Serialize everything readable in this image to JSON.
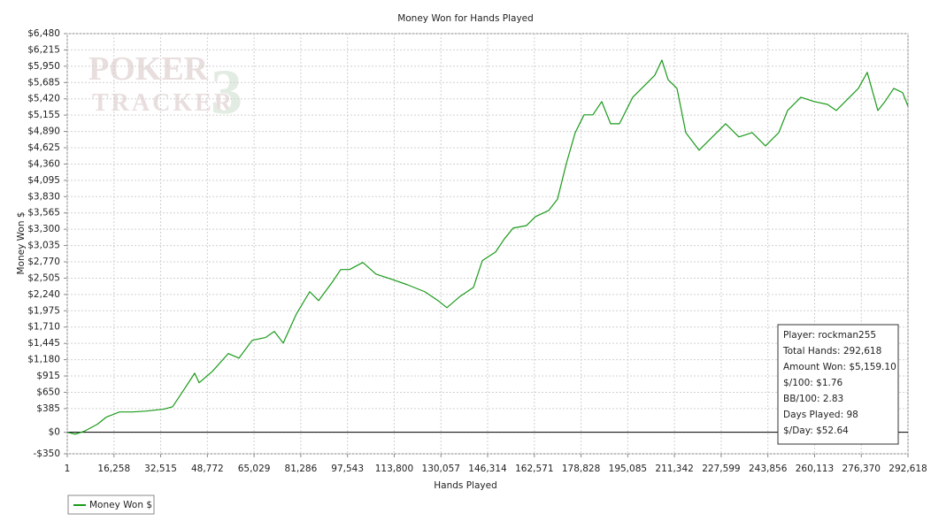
{
  "chart_data": {
    "type": "line",
    "title": "Money Won for Hands Played",
    "xlabel": "Hands Played",
    "ylabel": "Money Won $",
    "watermark": {
      "line1": "POKER",
      "line2": "TRACKER",
      "mark": "3"
    },
    "info_box": [
      "Player: rockman255",
      "Total Hands: 292,618",
      "Amount Won: $5,159.10",
      "$/100: $1.76",
      "BB/100: 2.83",
      "Days Played: 98",
      "$/Day: $52.64"
    ],
    "xlim": [
      1,
      292618
    ],
    "ylim": [
      -350,
      6480
    ],
    "grid": true,
    "legend": "bottom-left",
    "xticks": [
      1,
      {
        "value": 16258,
        "label": "16,258"
      },
      {
        "value": 32515,
        "label": "32,515"
      },
      {
        "value": 48772,
        "label": "48,772"
      },
      {
        "value": 65029,
        "label": "65,029"
      },
      {
        "value": 81286,
        "label": "81,286"
      },
      {
        "value": 97543,
        "label": "97,543"
      },
      {
        "value": 113800,
        "label": "113,800"
      },
      {
        "value": 130057,
        "label": "130,057"
      },
      {
        "value": 146314,
        "label": "146,314"
      },
      {
        "value": 162571,
        "label": "162,571"
      },
      {
        "value": 178828,
        "label": "178,828"
      },
      {
        "value": 195085,
        "label": "195,085"
      },
      {
        "value": 211342,
        "label": "211,342"
      },
      {
        "value": 227599,
        "label": "227,599"
      },
      {
        "value": 243856,
        "label": "243,856"
      },
      {
        "value": 260113,
        "label": "260,113"
      },
      {
        "value": 276370,
        "label": "276,370"
      },
      {
        "value": 292618,
        "label": "292,618"
      }
    ],
    "yticks": [
      {
        "value": -350,
        "label": "-$350"
      },
      {
        "value": 0,
        "label": "$0"
      },
      {
        "value": 385,
        "label": "$385"
      },
      {
        "value": 650,
        "label": "$650"
      },
      {
        "value": 915,
        "label": "$915"
      },
      {
        "value": 1180,
        "label": "$1,180"
      },
      {
        "value": 1445,
        "label": "$1,445"
      },
      {
        "value": 1710,
        "label": "$1,710"
      },
      {
        "value": 1975,
        "label": "$1,975"
      },
      {
        "value": 2240,
        "label": "$2,240"
      },
      {
        "value": 2505,
        "label": "$2,505"
      },
      {
        "value": 2770,
        "label": "$2,770"
      },
      {
        "value": 3035,
        "label": "$3,035"
      },
      {
        "value": 3300,
        "label": "$3,300"
      },
      {
        "value": 3565,
        "label": "$3,565"
      },
      {
        "value": 3830,
        "label": "$3,830"
      },
      {
        "value": 4095,
        "label": "$4,095"
      },
      {
        "value": 4360,
        "label": "$4,360"
      },
      {
        "value": 4625,
        "label": "$4,625"
      },
      {
        "value": 4890,
        "label": "$4,890"
      },
      {
        "value": 5155,
        "label": "$5,155"
      },
      {
        "value": 5420,
        "label": "$5,420"
      },
      {
        "value": 5685,
        "label": "$5,685"
      },
      {
        "value": 5950,
        "label": "$5,950"
      },
      {
        "value": 6215,
        "label": "$6,215"
      },
      {
        "value": 6480,
        "label": "$6,480"
      }
    ],
    "x": [
      1,
      2773,
      5853,
      10473,
      13553,
      18173,
      22793,
      27413,
      33573,
      36653,
      39733,
      44353,
      45893,
      50513,
      56057,
      59753,
      64373,
      68993,
      72073,
      75153,
      79773,
      84393,
      87473,
      92093,
      95173,
      98253,
      102873,
      107493,
      112113,
      118273,
      124433,
      129053,
      132133,
      136753,
      141373,
      144453,
      149073,
      152153,
      155233,
      159853,
      162933,
      167553,
      170633,
      173713,
      176793,
      179873,
      182953,
      186033,
      189113,
      192193,
      196813,
      201433,
      204513,
      206977,
      209133,
      212213,
      215293,
      219913,
      224533,
      229153,
      233773,
      238393,
      243013,
      247633,
      250713,
      255333,
      259953,
      264573,
      267653,
      272273,
      275353,
      278433,
      282129,
      284593,
      287673,
      290753,
      292618
    ],
    "series": [
      {
        "name": "Money Won $",
        "color": "#1a9a1a",
        "values": [
          0,
          -30,
          15,
          130,
          245,
          330,
          330,
          345,
          375,
          415,
          630,
          960,
          805,
          990,
          1280,
          1205,
          1495,
          1540,
          1640,
          1450,
          1925,
          2285,
          2140,
          2430,
          2645,
          2645,
          2760,
          2570,
          2500,
          2400,
          2285,
          2140,
          2025,
          2210,
          2355,
          2790,
          2930,
          3145,
          3320,
          3360,
          3505,
          3605,
          3790,
          4370,
          4870,
          5160,
          5160,
          5375,
          5015,
          5015,
          5445,
          5660,
          5805,
          6050,
          5730,
          5590,
          4870,
          4585,
          4800,
          5015,
          4800,
          4870,
          4655,
          4870,
          5230,
          5445,
          5375,
          5330,
          5230,
          5445,
          5590,
          5850,
          5230,
          5375,
          5590,
          5520,
          5300
        ]
      }
    ]
  }
}
